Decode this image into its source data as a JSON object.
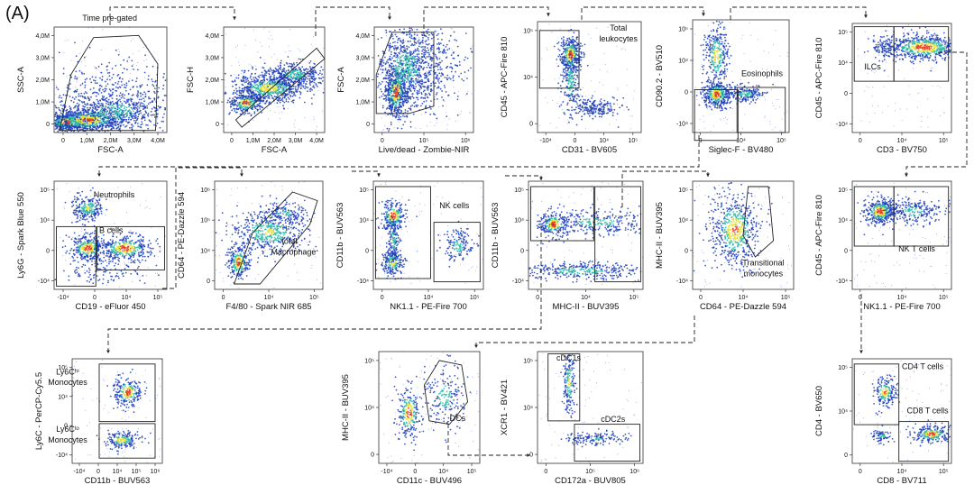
{
  "figure_label": "(A)",
  "colors": {
    "density_low": "#1f3fb8",
    "density_mid": "#2fb8a8",
    "density_high": "#e8e035",
    "density_peak": "#e63d1f",
    "gate": "#222222"
  },
  "plots": [
    {
      "id": "time-gate",
      "xlabel": "FSC-A",
      "ylabel": "SSC-A",
      "xticks": [
        "0",
        "1,0M",
        "2,0M",
        "3,0M",
        "4,0M"
      ],
      "yticks": [
        "4,0M",
        "3,0M",
        "2,0M",
        "1,0M",
        "0"
      ],
      "labels": [
        "Time pre-gated"
      ]
    },
    {
      "id": "singlets",
      "xlabel": "FSC-A",
      "ylabel": "FSC-H",
      "xticks": [
        "0",
        "1,0M",
        "2,0M",
        "3,0M",
        "4,0M"
      ],
      "yticks": [
        "4,0M",
        "3,0M",
        "2,0M",
        "1,0M",
        "0"
      ],
      "labels": []
    },
    {
      "id": "live",
      "xlabel": "Live/dead - Zombie-NIR",
      "ylabel": "FSC-A",
      "xticks": [
        "0",
        "10⁵",
        "10⁶"
      ],
      "yticks": [
        "4,0M",
        "3,0M",
        "2,0M",
        "1,0M",
        "0"
      ],
      "labels": []
    },
    {
      "id": "leukocytes",
      "xlabel": "CD31 - BV605",
      "ylabel": "CD45 - APC-Fire 810",
      "xticks": [
        "-10⁴",
        "0",
        "10⁴",
        "10⁵"
      ],
      "yticks": [
        "10⁵",
        "10⁴",
        "0"
      ],
      "labels": [
        "Total",
        "leukocytes"
      ]
    },
    {
      "id": "eosinophils",
      "xlabel": "Siglec-F - BV480",
      "ylabel": "CD90.2 - BV510",
      "xticks": [
        "0",
        "10⁴",
        "10⁵"
      ],
      "yticks": [
        "10⁵",
        "10⁴",
        "0",
        "-10⁴"
      ],
      "labels": [
        "Eosinophils"
      ]
    },
    {
      "id": "ilcs",
      "xlabel": "CD3 - BV750",
      "ylabel": "CD45 - APC-Fire 810",
      "xticks": [
        "0",
        "10⁴",
        "10⁵"
      ],
      "yticks": [
        "10⁵",
        "10⁴",
        "0",
        "-10⁴"
      ],
      "labels": [
        "ILCs"
      ]
    },
    {
      "id": "neutrophils",
      "xlabel": "CD19 - eFluor 450",
      "ylabel": "Ly6G - Spark Blue 550",
      "xticks": [
        "-10⁴",
        "0",
        "10⁴",
        "10⁵"
      ],
      "yticks": [
        "10⁵",
        "10⁴",
        "0",
        "-10⁴"
      ],
      "labels": [
        "Neutrophils",
        "B cells"
      ]
    },
    {
      "id": "macrophage",
      "xlabel": "F4/80 - Spark NIR 685",
      "ylabel": "CD64 - PE-Dazzle 594",
      "xticks": [
        "0",
        "10⁴",
        "10⁵"
      ],
      "yticks": [
        "10⁶",
        "10⁵",
        "10⁴",
        "0"
      ],
      "labels": [
        "total",
        "Macrophage"
      ]
    },
    {
      "id": "nk",
      "xlabel": "NK1.1 - PE-Fire 700",
      "ylabel": "CD11b - BUV563",
      "xticks": [
        "0",
        "10⁴",
        "10⁵"
      ],
      "yticks": [
        "10⁵",
        "10⁴",
        "0",
        "-10⁴"
      ],
      "labels": [
        "NK cells"
      ]
    },
    {
      "id": "mhc",
      "xlabel": "MHC-II - BUV395",
      "ylabel": "CD11b - BUV563",
      "xticks": [
        "0",
        "10⁴",
        "10⁵"
      ],
      "yticks": [
        "10⁵",
        "10⁴",
        "0",
        "-10⁴"
      ],
      "labels": []
    },
    {
      "id": "transitional",
      "xlabel": "CD64 - PE-Dazzle 594",
      "ylabel": "MHC-II - BUV395",
      "xticks": [
        "0",
        "10⁴",
        "10⁵"
      ],
      "yticks": [
        "10⁵",
        "10⁴",
        "0",
        "-10⁴"
      ],
      "labels": [
        "Transitional",
        "monocytes"
      ]
    },
    {
      "id": "nkt",
      "xlabel": "NK1.1 - PE-Fire 700",
      "ylabel": "CD45 - APC-Fire 810",
      "xticks": [
        "0",
        "10⁴",
        "10⁵"
      ],
      "yticks": [
        "10⁵",
        "10⁴",
        "0",
        "-10⁴"
      ],
      "labels": [
        "NK T cells"
      ]
    },
    {
      "id": "ly6c",
      "xlabel": "CD11b - BUV563",
      "ylabel": "Ly6C - PerCP-Cy5.5",
      "xticks": [
        "-10⁴",
        "0",
        "10⁴",
        "10⁵",
        "10⁶"
      ],
      "yticks": [
        "10⁵",
        "10⁴",
        "0",
        "-10⁴"
      ],
      "labels": [
        "Ly6Cʰⁱ",
        "Monocytes",
        "Ly6Cˡᵒ",
        "Monocytes"
      ]
    },
    {
      "id": "dcs",
      "xlabel": "CD11c - BUV496",
      "ylabel": "MHC-II - BUV395",
      "xticks": [
        "-10⁴",
        "0",
        "10⁴",
        "10⁵"
      ],
      "yticks": [
        "10⁵",
        "10⁴",
        "0"
      ],
      "labels": [
        "DCs"
      ]
    },
    {
      "id": "cdc",
      "xlabel": "CD172a - BUV805",
      "ylabel": "XCR1 - BV421",
      "xticks": [
        "0",
        "10⁵",
        "10⁶"
      ],
      "yticks": [
        "10⁵",
        "10⁴",
        "0"
      ],
      "labels": [
        "cDC1s",
        "cDC2s"
      ]
    },
    {
      "id": "tcells",
      "xlabel": "CD8 - BV711",
      "ylabel": "CD4 - BV650",
      "xticks": [
        "0",
        "10⁴",
        "10⁵"
      ],
      "yticks": [
        "10⁵",
        "10⁴",
        "0"
      ],
      "labels": [
        "CD4 T cells",
        "CD8 T cells"
      ]
    }
  ]
}
